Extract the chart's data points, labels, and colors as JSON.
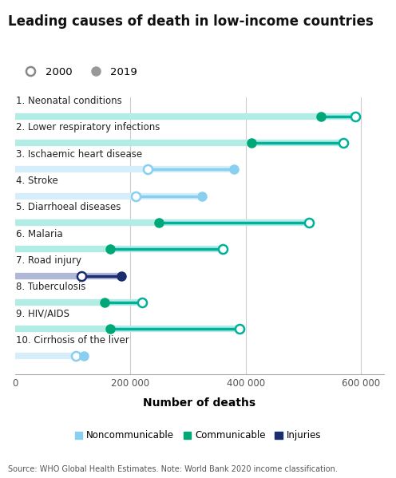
{
  "title": "Leading causes of death in low-income countries",
  "xlabel": "Number of deaths",
  "categories": [
    "1. Neonatal conditions",
    "2. Lower respiratory infections",
    "3. Ischaemic heart disease",
    "4. Stroke",
    "5. Diarrhoeal diseases",
    "6. Malaria",
    "7. Road injury",
    "8. Tuberculosis",
    "9. HIV/AIDS",
    "10. Cirrhosis of the liver"
  ],
  "val_2000": [
    590000,
    570000,
    230000,
    210000,
    510000,
    360000,
    115000,
    220000,
    390000,
    105000
  ],
  "val_2019": [
    530000,
    410000,
    380000,
    325000,
    250000,
    165000,
    185000,
    155000,
    165000,
    120000
  ],
  "category_type": [
    "Communicable",
    "Communicable",
    "Noncommunicable",
    "Noncommunicable",
    "Communicable",
    "Communicable",
    "Injuries",
    "Communicable",
    "Communicable",
    "Noncommunicable"
  ],
  "line_color": [
    "#00b09b",
    "#00b09b",
    "#89cff0",
    "#89cff0",
    "#00b09b",
    "#00b09b",
    "#1a2e6e",
    "#00b09b",
    "#00b09b",
    "#89cff0"
  ],
  "dot2019_color": [
    "#00a878",
    "#00a878",
    "#89cff0",
    "#89cff0",
    "#00a878",
    "#00a878",
    "#1a2e6e",
    "#00a878",
    "#00a878",
    "#89cff0"
  ],
  "communicable_color": "#00a878",
  "noncommunicable_color": "#89cff0",
  "injuries_color": "#1a2e6e",
  "line_bg_color": [
    "#b2ede5",
    "#b2ede5",
    "#d6eefa",
    "#d6eefa",
    "#b2ede5",
    "#b2ede5",
    "#b0b8d8",
    "#b2ede5",
    "#b2ede5",
    "#d6eefa"
  ],
  "source_text": "Source: WHO Global Health Estimates. Note: World Bank 2020 income classification.",
  "xlim": [
    0,
    640000
  ],
  "xticks": [
    0,
    200000,
    400000,
    600000
  ],
  "xticklabels": [
    "0",
    "200 000",
    "400 000",
    "600 000"
  ],
  "bg_color": "#ffffff",
  "grid_color": "#cccccc"
}
